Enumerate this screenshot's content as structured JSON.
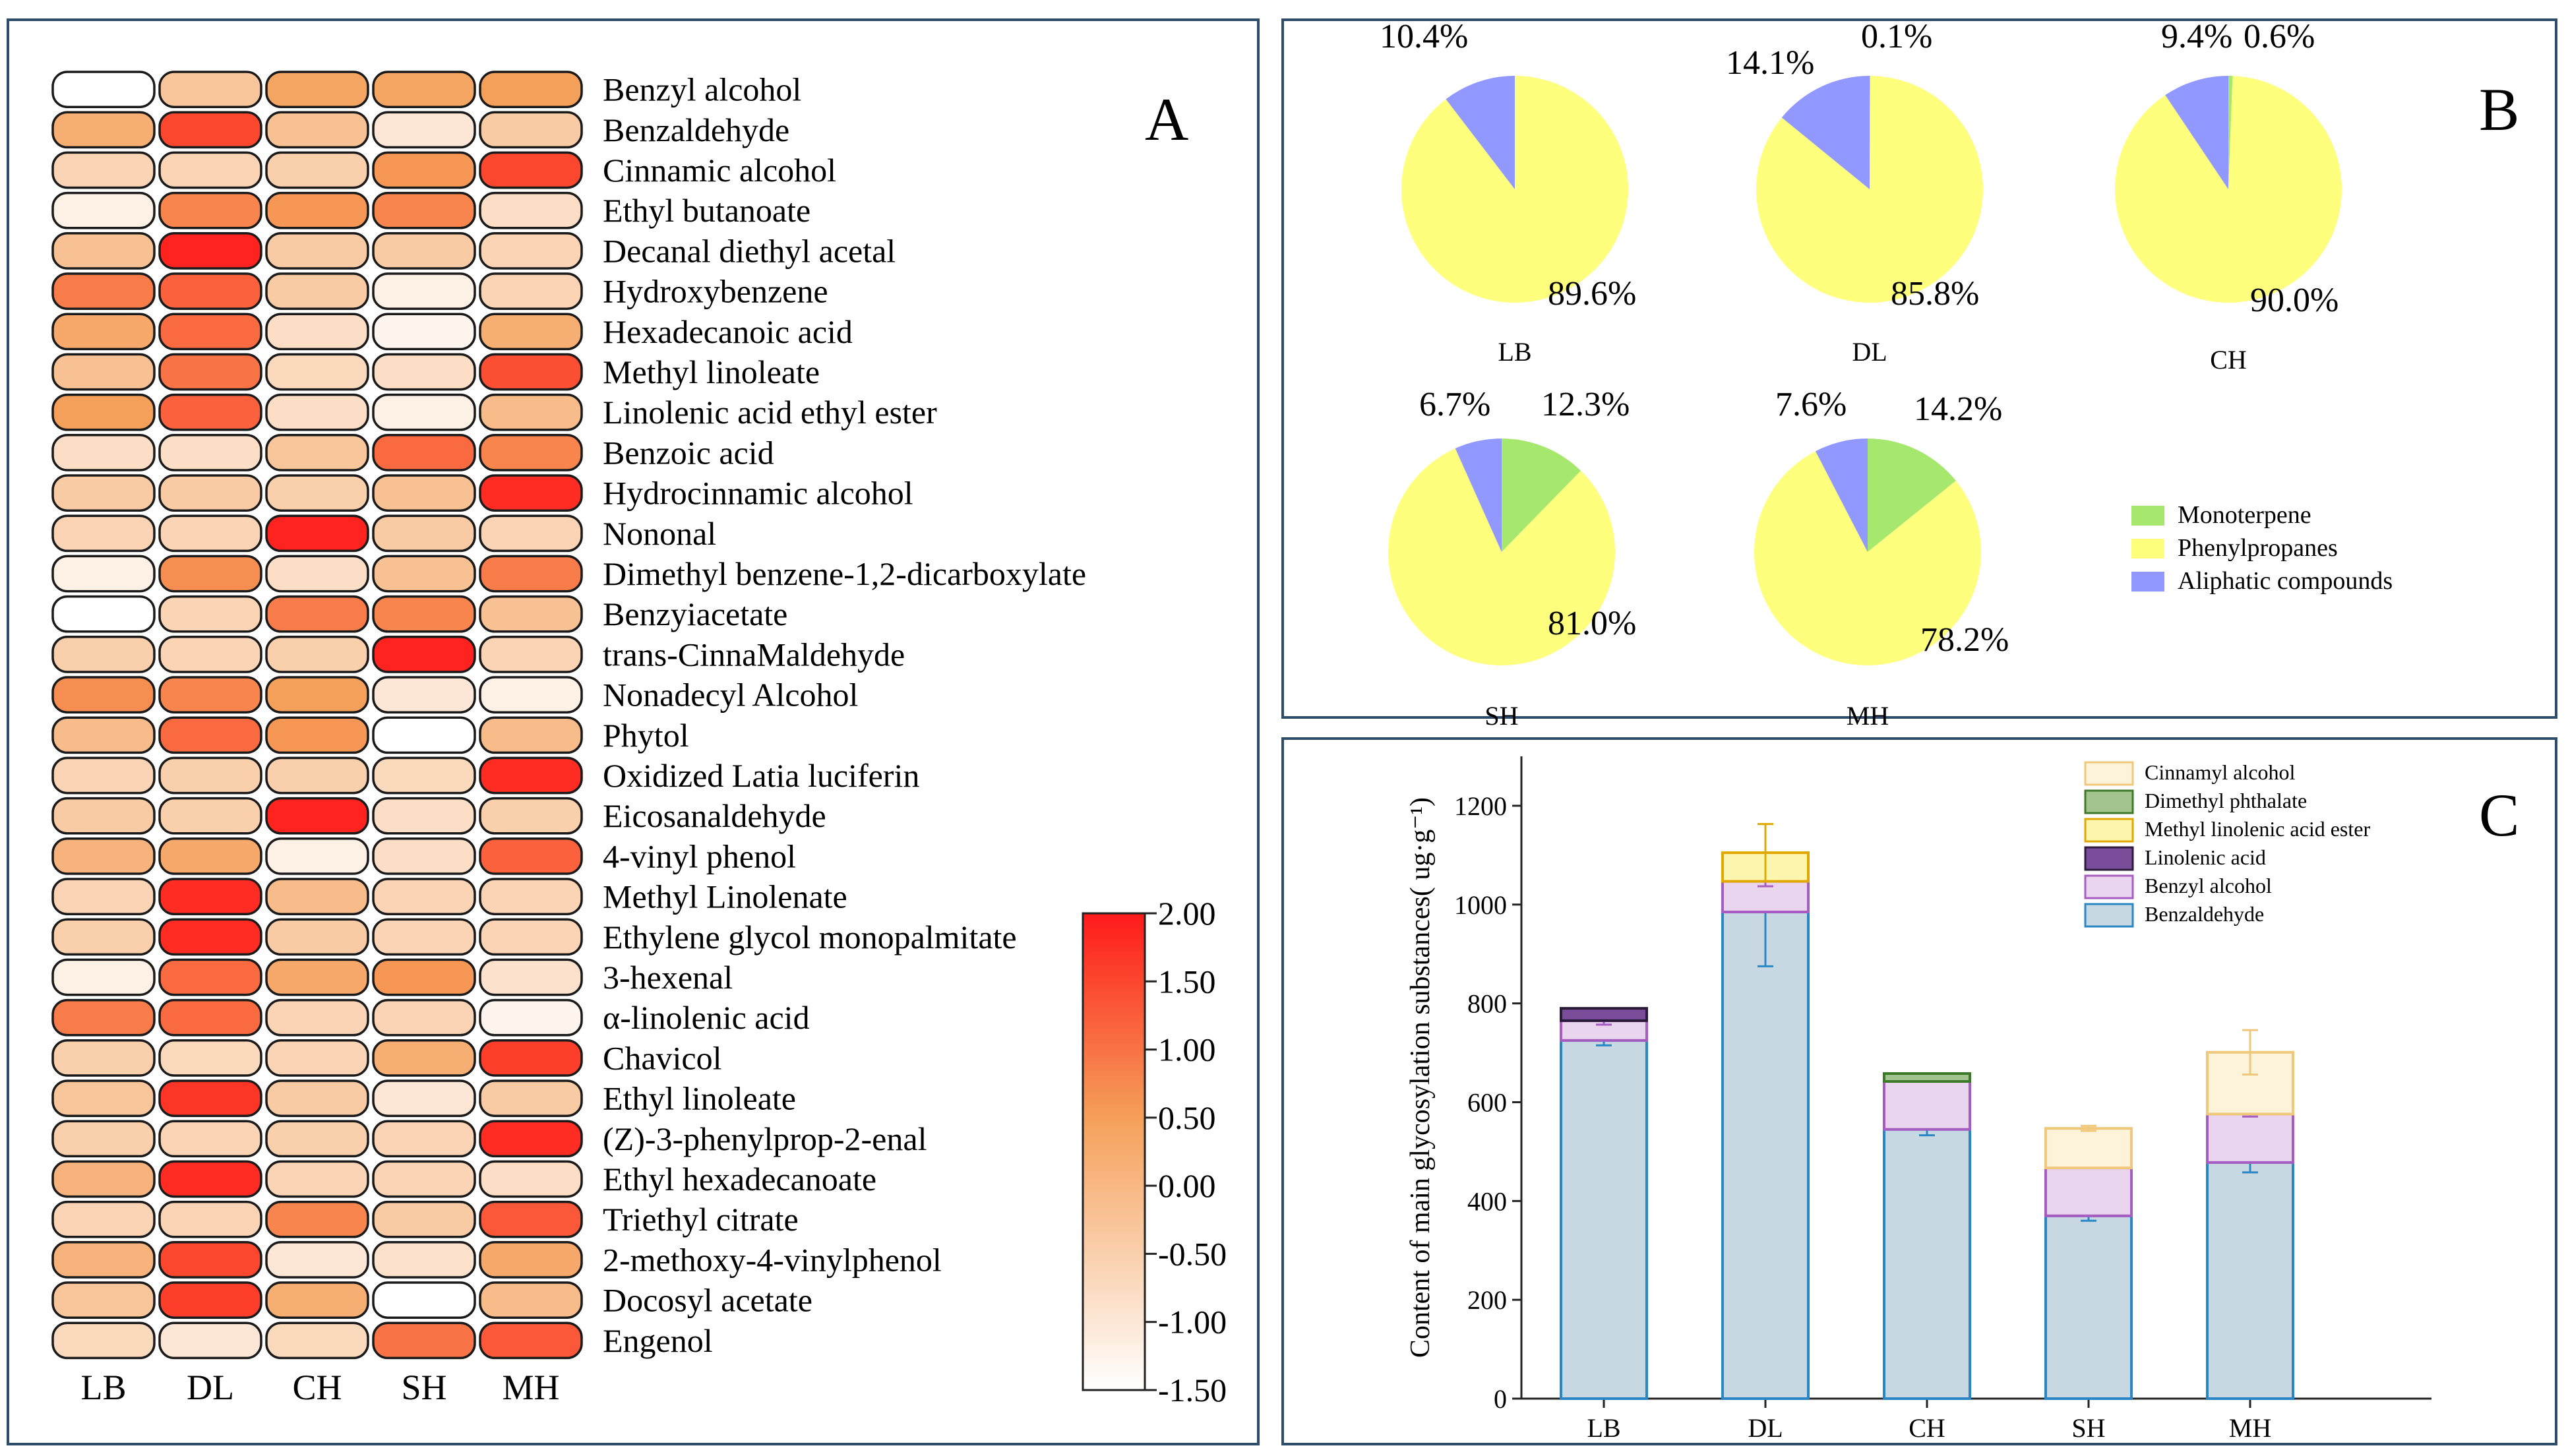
{
  "panelA": {
    "letter": "A",
    "samples": [
      "LB",
      "DL",
      "CH",
      "SH",
      "MH"
    ],
    "compounds": [
      "Benzyl alcohol",
      "Benzaldehyde",
      "Cinnamic alcohol",
      "Ethyl butanoate",
      "Decanal diethyl acetal",
      "Hydroxybenzene",
      "Hexadecanoic acid",
      "Methyl linoleate",
      "Linolenic acid ethyl ester",
      "Benzoic acid",
      "Hydrocinnamic alcohol",
      "Nononal",
      "Dimethyl benzene-1,2-dicarboxylate",
      "Benzyiacetate",
      "trans-CinnaMaldehyde",
      "Nonadecyl Alcohol",
      "Phytol",
      "Oxidized Latia luciferin",
      "Eicosanaldehyde",
      "4-vinyl phenol",
      "Methyl Linolenate",
      "Ethylene glycol monopalmitate",
      "3-hexenal",
      "α-linolenic acid",
      "Chavicol",
      "Ethyl linoleate",
      "(Z)-3-phenylprop-2-enal",
      "Ethyl hexadecanoate",
      "Triethyl citrate",
      "2-methoxy-4-vinylphenol",
      "Docosyl acetate",
      "Engenol"
    ],
    "legend_ticks": [
      "2.00",
      "1.50",
      "1.00",
      "0.50",
      "0.00",
      "-0.50",
      "-1.00",
      "-1.50"
    ]
  },
  "panelB": {
    "letter": "B",
    "legend": [
      "Monoterpene",
      "Phenylpropanes",
      "Aliphatic compounds"
    ],
    "pies": [
      {
        "label": "LB",
        "pct_labels": [
          "89.6%",
          "10.4%"
        ]
      },
      {
        "label": "DL",
        "pct_labels": [
          "85.8%",
          "14.1%",
          "0.1%"
        ]
      },
      {
        "label": "CH",
        "pct_labels": [
          "90.0%",
          "9.4%",
          "0.6%"
        ]
      },
      {
        "label": "SH",
        "pct_labels": [
          "12.3%",
          "81.0%",
          "6.7%"
        ]
      },
      {
        "label": "MH",
        "pct_labels": [
          "14.2%",
          "78.2%",
          "7.6%"
        ]
      }
    ]
  },
  "panelC": {
    "letter": "C",
    "legend": [
      "Cinnamyl alcohol",
      "Dimethyl phthalate",
      "Methyl linolenic acid ester",
      "Linolenic acid",
      "Benzyl alcohol",
      "Benzaldehyde"
    ]
  },
  "chart_data": [
    {
      "type": "heatmap",
      "title": "",
      "x": [
        "LB",
        "DL",
        "CH",
        "SH",
        "MH"
      ],
      "y": [
        "Benzyl alcohol",
        "Benzaldehyde",
        "Cinnamic alcohol",
        "Ethyl butanoate",
        "Decanal diethyl acetal",
        "Hydroxybenzene",
        "Hexadecanoic acid",
        "Methyl linoleate",
        "Linolenic acid ethyl ester",
        "Benzoic acid",
        "Hydrocinnamic alcohol",
        "Nononal",
        "Dimethyl benzene-1,2-dicarboxylate",
        "Benzyiacetate",
        "trans-CinnaMaldehyde",
        "Nonadecyl Alcohol",
        "Phytol",
        "Oxidized Latia luciferin",
        "Eicosanaldehyde",
        "4-vinyl phenol",
        "Methyl Linolenate",
        "Ethylene glycol monopalmitate",
        "3-hexenal",
        "α-linolenic acid",
        "Chavicol",
        "Ethyl linoleate",
        "(Z)-3-phenylprop-2-enal",
        "Ethyl hexadecanoate",
        "Triethyl citrate",
        "2-methoxy-4-vinylphenol",
        "Docosyl acetate",
        "Engenol"
      ],
      "values": [
        [
          -1.5,
          -0.3,
          0.4,
          0.4,
          0.5
        ],
        [
          0.2,
          1.5,
          -0.2,
          -1.0,
          -0.4
        ],
        [
          -0.6,
          -0.6,
          -0.5,
          0.6,
          1.5
        ],
        [
          -1.2,
          0.8,
          0.6,
          0.8,
          -0.8
        ],
        [
          -0.2,
          1.9,
          -0.4,
          -0.4,
          -0.6
        ],
        [
          0.9,
          1.2,
          -0.4,
          -1.2,
          -0.6
        ],
        [
          0.3,
          1.1,
          -0.8,
          -1.3,
          0.2
        ],
        [
          -0.2,
          1.0,
          -0.7,
          -0.8,
          1.4
        ],
        [
          0.5,
          1.2,
          -0.8,
          -1.2,
          -0.1
        ],
        [
          -0.8,
          -0.8,
          -0.3,
          1.1,
          0.8
        ],
        [
          -0.4,
          -0.4,
          -0.5,
          -0.2,
          1.8
        ],
        [
          -0.6,
          -0.6,
          1.9,
          -0.4,
          -0.6
        ],
        [
          -1.2,
          0.7,
          -0.8,
          -0.2,
          0.9
        ],
        [
          -1.5,
          -0.6,
          0.9,
          0.8,
          -0.2
        ],
        [
          -0.5,
          -0.6,
          -0.5,
          1.9,
          -0.6
        ],
        [
          0.7,
          0.8,
          0.5,
          -1.0,
          -1.2
        ],
        [
          -0.1,
          1.1,
          0.6,
          -1.5,
          -0.1
        ],
        [
          -0.6,
          -0.5,
          -0.5,
          -0.7,
          1.8
        ],
        [
          -0.4,
          -0.5,
          1.9,
          -0.8,
          -0.5
        ],
        [
          0.1,
          0.3,
          -1.2,
          -0.8,
          1.2
        ],
        [
          -0.6,
          1.8,
          -0.1,
          -0.6,
          -0.6
        ],
        [
          -0.5,
          1.8,
          -0.4,
          -0.6,
          -0.6
        ],
        [
          -1.2,
          1.1,
          0.3,
          0.6,
          -0.9
        ],
        [
          0.9,
          1.1,
          -0.6,
          -0.6,
          -1.3
        ],
        [
          -0.5,
          -0.7,
          -0.6,
          0.2,
          1.6
        ],
        [
          -0.3,
          1.7,
          -0.4,
          -1.0,
          -0.4
        ],
        [
          -0.5,
          -0.6,
          -0.5,
          -0.6,
          1.8
        ],
        [
          0.1,
          1.8,
          -0.6,
          -0.6,
          -0.8
        ],
        [
          -0.6,
          -0.6,
          0.8,
          -0.4,
          1.3
        ],
        [
          0.1,
          1.5,
          -1.0,
          -0.9,
          0.3
        ],
        [
          -0.3,
          1.6,
          0.2,
          -1.5,
          -0.1
        ],
        [
          -0.7,
          -1.0,
          -0.7,
          1.0,
          1.3
        ]
      ],
      "colorbar": {
        "min": -1.5,
        "max": 2.0,
        "colors": [
          "#ffffff",
          "#f5a05a",
          "#ff1a1a"
        ]
      }
    },
    {
      "type": "pie",
      "categories": [
        "Monoterpene",
        "Phenylpropanes",
        "Aliphatic compounds"
      ],
      "colors": [
        "#a6e86e",
        "#ffff7e",
        "#9198ff"
      ],
      "series": [
        {
          "name": "LB",
          "values": [
            0,
            89.6,
            10.4
          ]
        },
        {
          "name": "DL",
          "values": [
            0.1,
            85.8,
            14.1
          ]
        },
        {
          "name": "CH",
          "values": [
            0.6,
            90.0,
            9.4
          ]
        },
        {
          "name": "SH",
          "values": [
            12.3,
            81.0,
            6.7
          ]
        },
        {
          "name": "MH",
          "values": [
            14.2,
            78.2,
            7.6
          ]
        }
      ]
    },
    {
      "type": "bar",
      "stacked": true,
      "categories": [
        "LB",
        "DL",
        "CH",
        "SH",
        "MH"
      ],
      "ylabel": "Content of main glycosylation substances( ug·g⁻¹)",
      "xlabel": "",
      "ylim": [
        0,
        1300
      ],
      "yticks": [
        0,
        200,
        400,
        600,
        800,
        1000,
        1200
      ],
      "series": [
        {
          "name": "Benzaldehyde",
          "fill": "#c8d8e2",
          "stroke": "#2b86c5",
          "values": [
            725,
            985,
            545,
            370,
            478
          ],
          "err": [
            10,
            110,
            12,
            10,
            20
          ]
        },
        {
          "name": "Benzyl alcohol",
          "fill": "#e9d5ee",
          "stroke": "#a65cc0",
          "values": [
            40,
            62,
            97,
            97,
            98
          ],
          "err": [
            8,
            10,
            0,
            0,
            5
          ]
        },
        {
          "name": "Linolenic acid",
          "fill": "#7a4d9b",
          "stroke": "#2c1a3a",
          "values": [
            25,
            0,
            0,
            0,
            0
          ],
          "err": [
            0,
            0,
            0,
            0,
            0
          ]
        },
        {
          "name": "Methyl linolenic acid ester",
          "fill": "#fdf6ae",
          "stroke": "#e0a800",
          "values": [
            0,
            58,
            0,
            0,
            0
          ],
          "err": [
            0,
            58,
            0,
            0,
            0
          ]
        },
        {
          "name": "Dimethyl phthalate",
          "fill": "#a3c48f",
          "stroke": "#3c7a2a",
          "values": [
            0,
            0,
            16,
            0,
            0
          ],
          "err": [
            0,
            0,
            0,
            0,
            0
          ]
        },
        {
          "name": "Cinnamyl alcohol",
          "fill": "#fdf2da",
          "stroke": "#f0c87a",
          "values": [
            0,
            0,
            0,
            80,
            125
          ],
          "err": [
            0,
            0,
            0,
            5,
            45
          ]
        }
      ]
    }
  ]
}
